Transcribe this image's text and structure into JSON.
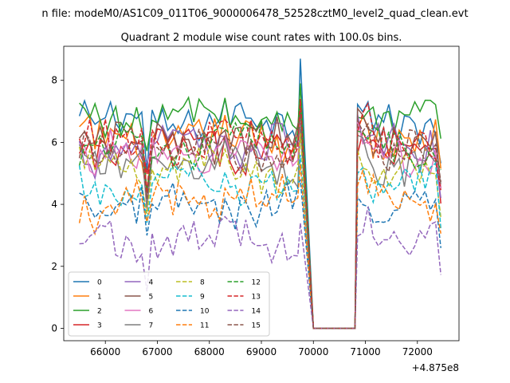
{
  "chart_data": {
    "type": "line",
    "suptitle": "n file: modeM0/AS1C09_011T06_9000006478_52528cztM0_level2_quad_clean.evt",
    "title": "Quadrant 2 module wise count rates with 100.0s bins.",
    "xlabel": "",
    "ylabel": "",
    "x_offset_label": "+4.875e8",
    "xlim": [
      65200,
      72800
    ],
    "ylim": [
      -0.4,
      9.1
    ],
    "x_ticks": [
      66000,
      67000,
      68000,
      69000,
      70000,
      71000,
      72000
    ],
    "x_tick_labels": [
      "66000",
      "67000",
      "68000",
      "69000",
      "70000",
      "71000",
      "72000"
    ],
    "y_ticks": [
      0,
      2,
      4,
      6,
      8
    ],
    "y_tick_labels": [
      "0",
      "2",
      "4",
      "6",
      "8"
    ],
    "legend_position": "lower-left",
    "series": [
      {
        "name": "0",
        "color": "#1f77b4",
        "style": "solid",
        "mean": 6.7,
        "peak": 8.7
      },
      {
        "name": "1",
        "color": "#ff7f0e",
        "style": "solid",
        "mean": 6.1,
        "peak": 7.3
      },
      {
        "name": "2",
        "color": "#2ca02c",
        "style": "solid",
        "mean": 6.8,
        "peak": 7.9
      },
      {
        "name": "3",
        "color": "#d62728",
        "style": "solid",
        "mean": 5.8,
        "peak": 7.0
      },
      {
        "name": "4",
        "color": "#9467bd",
        "style": "solid",
        "mean": 5.9,
        "peak": 7.0
      },
      {
        "name": "5",
        "color": "#8c564b",
        "style": "solid",
        "mean": 6.0,
        "peak": 7.0
      },
      {
        "name": "6",
        "color": "#e377c2",
        "style": "solid",
        "mean": 5.6,
        "peak": 6.8
      },
      {
        "name": "7",
        "color": "#7f7f7f",
        "style": "solid",
        "mean": 5.3,
        "peak": 6.5
      },
      {
        "name": "8",
        "color": "#bcbd22",
        "style": "dashed",
        "mean": 5.1,
        "peak": 6.3
      },
      {
        "name": "9",
        "color": "#17becf",
        "style": "dashed",
        "mean": 4.6,
        "peak": 5.6
      },
      {
        "name": "10",
        "color": "#1f77b4",
        "style": "dashed",
        "mean": 3.9,
        "peak": 4.8
      },
      {
        "name": "11",
        "color": "#ff7f0e",
        "style": "dashed",
        "mean": 4.2,
        "peak": 5.3
      },
      {
        "name": "12",
        "color": "#2ca02c",
        "style": "dashed",
        "mean": 5.9,
        "peak": 7.2
      },
      {
        "name": "13",
        "color": "#d62728",
        "style": "dashed",
        "mean": 6.0,
        "peak": 7.4
      },
      {
        "name": "14",
        "color": "#9467bd",
        "style": "dashed",
        "mean": 2.9,
        "peak": 3.4
      },
      {
        "name": "15",
        "color": "#8c564b",
        "style": "dashed",
        "mean": 5.7,
        "peak": 6.9
      }
    ],
    "segments": [
      {
        "x_start": 65500,
        "x_end": 69800,
        "type": "active"
      },
      {
        "x_start": 69800,
        "x_end": 70000,
        "type": "drop"
      },
      {
        "x_start": 70000,
        "x_end": 70800,
        "type": "zero"
      },
      {
        "x_start": 70800,
        "x_end": 72500,
        "type": "active"
      }
    ]
  }
}
